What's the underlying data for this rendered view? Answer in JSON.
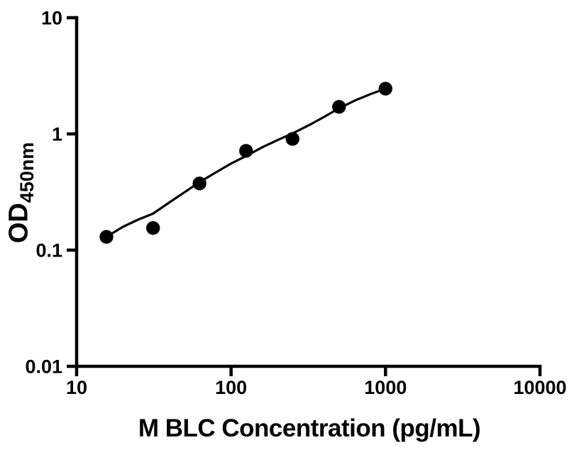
{
  "figure": {
    "background_color": "#ffffff"
  },
  "chart_data": {
    "type": "scatter",
    "title": "",
    "xlabel": "M BLC Concentration (pg/mL)",
    "ylabel": "OD",
    "ylabel_subscript": "450nm",
    "x_scale": "log10",
    "y_scale": "log10",
    "xlim": [
      10,
      10000
    ],
    "ylim": [
      0.01,
      10
    ],
    "grid": false,
    "legend_position": "none",
    "axis_color": "#000000",
    "marker_color": "#000000",
    "line_color": "#000000",
    "x_ticks": [
      10,
      100,
      1000,
      10000
    ],
    "x_tick_labels": [
      "10",
      "100",
      "1000",
      "10000"
    ],
    "y_ticks": [
      0.01,
      0.1,
      1,
      10
    ],
    "y_tick_labels": [
      "0.01",
      "0.1",
      "1",
      "10"
    ],
    "series": [
      {
        "name": "standard-data-points",
        "type": "scatter",
        "marker": "filled-circle",
        "x": [
          15.6,
          31.25,
          62.5,
          125,
          250,
          500,
          1000
        ],
        "y": [
          0.13,
          0.155,
          0.375,
          0.715,
          0.905,
          1.71,
          2.45
        ]
      },
      {
        "name": "fitted-standard-curve",
        "type": "line",
        "x": [
          15.6,
          20,
          25,
          31.25,
          40,
          50,
          62.5,
          80,
          100,
          125,
          160,
          200,
          250,
          320,
          400,
          500,
          640,
          800,
          1000
        ],
        "y": [
          0.13,
          0.159,
          0.183,
          0.206,
          0.258,
          0.315,
          0.385,
          0.468,
          0.556,
          0.645,
          0.77,
          0.885,
          1.01,
          1.19,
          1.4,
          1.66,
          1.95,
          2.2,
          2.45
        ]
      }
    ]
  }
}
